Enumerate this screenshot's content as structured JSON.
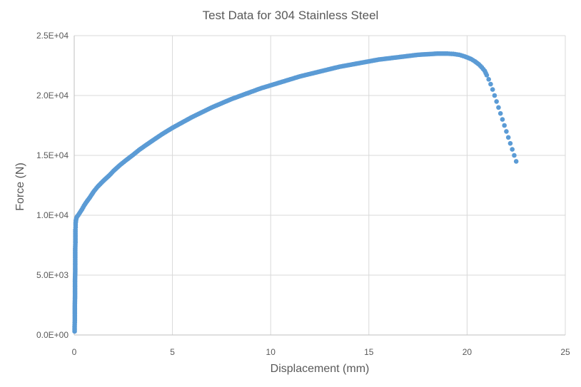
{
  "chart_data": {
    "type": "scatter",
    "title": "Test Data for 304 Stainless Steel",
    "xlabel": "Displacement (mm)",
    "ylabel": "Force (N)",
    "xlim": [
      0,
      25
    ],
    "ylim": [
      0,
      25000
    ],
    "x_ticks": [
      "0",
      "5",
      "10",
      "15",
      "20",
      "25"
    ],
    "y_ticks": [
      "0.0E+00",
      "5.0E+03",
      "1.0E+04",
      "1.5E+04",
      "2.0E+04",
      "2.5E+04"
    ],
    "grid": true,
    "legend": "none",
    "color": "#5b9bd5",
    "series": [
      {
        "x": [
          0.02,
          0.02,
          0.03,
          0.03,
          0.03,
          0.04,
          0.04,
          0.04,
          0.05,
          0.05,
          0.05,
          0.05,
          0.06,
          0.06,
          0.06,
          0.06,
          0.07,
          0.07,
          0.07,
          0.08,
          0.08,
          0.09,
          0.1,
          0.12,
          0.15,
          0.2,
          0.3,
          0.4,
          0.5,
          0.6,
          0.8,
          1.0,
          1.2,
          1.5,
          1.8,
          2.0,
          2.3,
          2.6,
          3.0,
          3.3,
          3.6,
          4.0,
          4.5,
          5.0,
          5.5,
          6.0,
          6.5,
          7.0,
          7.5,
          8.0,
          8.5,
          9.0,
          9.5,
          10.0,
          10.5,
          11.0,
          11.5,
          12.0,
          12.5,
          13.0,
          13.5,
          14.0,
          14.5,
          15.0,
          15.5,
          16.0,
          16.5,
          17.0,
          17.5,
          18.0,
          18.5,
          19.0,
          19.3,
          19.6,
          19.9,
          20.2,
          20.4,
          20.6,
          20.75,
          20.9,
          21.0,
          21.1,
          21.2,
          21.3,
          21.4,
          21.5,
          21.6,
          21.7,
          21.8,
          21.9,
          22.0,
          22.1,
          22.2,
          22.3,
          22.4,
          22.5
        ],
        "y": [
          300,
          700,
          1200,
          1800,
          2500,
          3200,
          3900,
          4600,
          5300,
          6000,
          6600,
          7200,
          7700,
          8100,
          8500,
          8800,
          9000,
          9200,
          9350,
          9450,
          9550,
          9600,
          9700,
          9800,
          9900,
          10000,
          10250,
          10500,
          10800,
          11050,
          11500,
          12000,
          12400,
          12900,
          13350,
          13700,
          14150,
          14550,
          15050,
          15450,
          15800,
          16250,
          16800,
          17300,
          17750,
          18200,
          18600,
          19000,
          19350,
          19700,
          20000,
          20300,
          20600,
          20850,
          21100,
          21350,
          21600,
          21800,
          22000,
          22200,
          22400,
          22550,
          22700,
          22850,
          23000,
          23100,
          23200,
          23300,
          23400,
          23450,
          23500,
          23500,
          23470,
          23400,
          23250,
          23050,
          22850,
          22600,
          22350,
          22050,
          21700,
          21350,
          20950,
          20500,
          20000,
          19500,
          19000,
          18500,
          18000,
          17500,
          17000,
          16500,
          16000,
          15500,
          15000,
          14500
        ]
      }
    ]
  }
}
